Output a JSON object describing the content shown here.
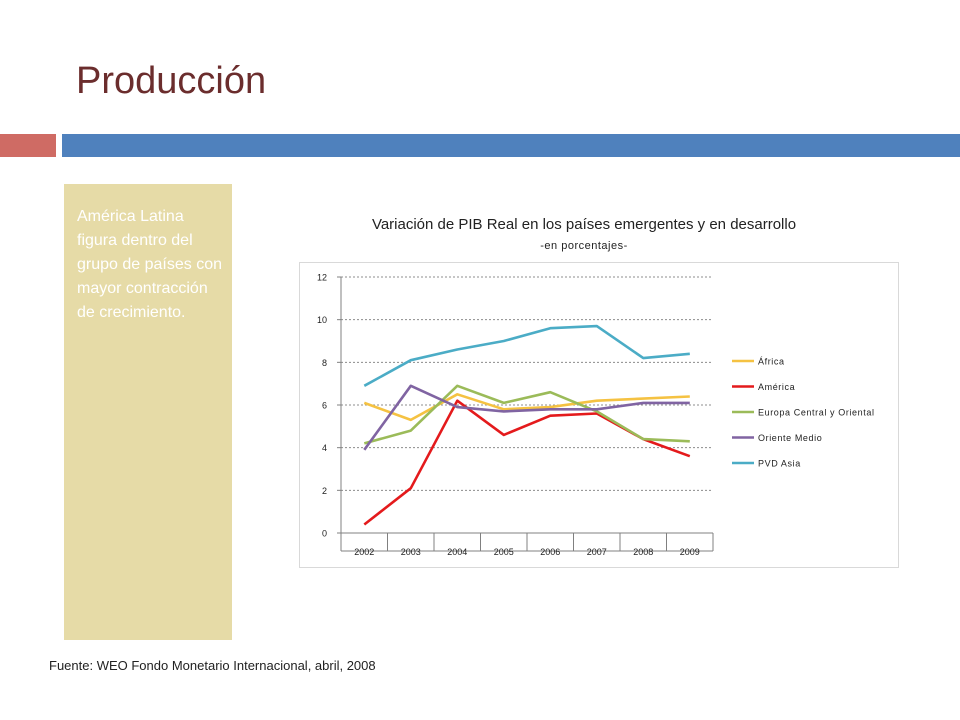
{
  "slide": {
    "title": "Producción",
    "side_text": "América Latina figura dentro del grupo de países con mayor contracción de crecimiento.",
    "source": "Fuente: WEO Fondo Monetario Internacional, abril, 2008"
  },
  "colors": {
    "title": "#6b2d2d",
    "accent_left": "#cf6b64",
    "accent_right": "#4f81bd",
    "panel": "#e6dba7"
  },
  "chart_data": {
    "type": "line",
    "title": "Variación de PIB Real en los países emergentes y en desarrollo",
    "subtitle": "-en porcentajes-",
    "xlabel": "",
    "ylabel": "",
    "x": [
      "2002",
      "2003",
      "2004",
      "2005",
      "2006",
      "2007",
      "2008",
      "2009"
    ],
    "ylim": [
      0,
      12
    ],
    "yticks": [
      "0",
      "2",
      "4",
      "6",
      "8",
      "10",
      "12"
    ],
    "grid": true,
    "legend": "right",
    "series": [
      {
        "name": "África",
        "color": "#f5c242",
        "values": [
          6.1,
          5.3,
          6.5,
          5.8,
          5.9,
          6.2,
          6.3,
          6.4
        ]
      },
      {
        "name": "América",
        "color": "#e41a1c",
        "values": [
          0.4,
          2.1,
          6.2,
          4.6,
          5.5,
          5.6,
          4.4,
          3.6
        ]
      },
      {
        "name": "Europa Central y Oriental",
        "color": "#9bbb59",
        "values": [
          4.2,
          4.8,
          6.9,
          6.1,
          6.6,
          5.7,
          4.4,
          4.3
        ]
      },
      {
        "name": "Oriente Medio",
        "color": "#8064a2",
        "values": [
          3.9,
          6.9,
          5.9,
          5.7,
          5.8,
          5.8,
          6.1,
          6.1
        ]
      },
      {
        "name": "PVD Asia",
        "color": "#4bacc6",
        "values": [
          6.9,
          8.1,
          8.6,
          9.0,
          9.6,
          9.7,
          8.2,
          8.4
        ]
      }
    ]
  }
}
